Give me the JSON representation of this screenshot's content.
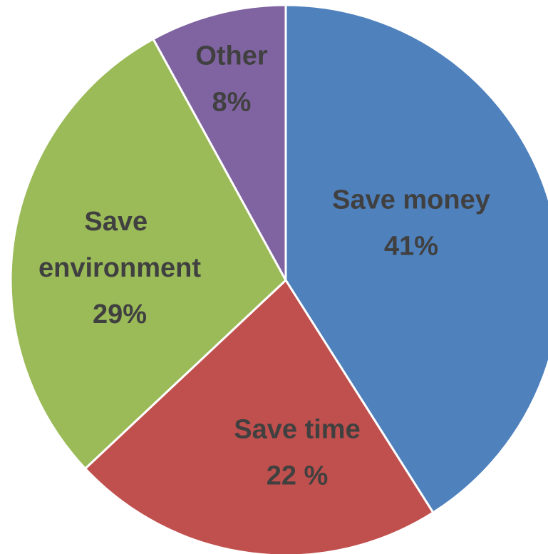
{
  "chart_data": {
    "type": "pie",
    "categories": [
      "Save money",
      "Save time",
      "Save environment",
      "Other"
    ],
    "values": [
      41,
      22,
      29,
      8
    ],
    "value_labels": [
      "41%",
      "22 %",
      "29%",
      "8%"
    ],
    "colors": [
      "#4f81bd",
      "#c0504d",
      "#9bbb59",
      "#8064a2"
    ]
  }
}
